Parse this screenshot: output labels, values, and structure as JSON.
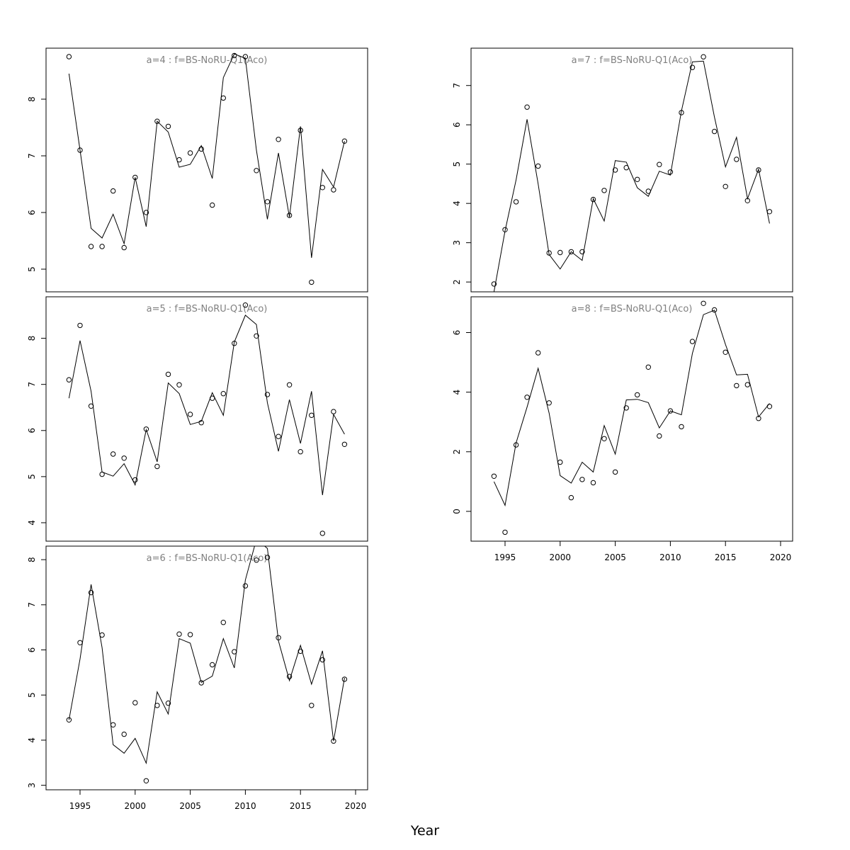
{
  "figure": {
    "xlabel": "Year",
    "x_tick_labels": [
      "1995",
      "2000",
      "2005",
      "2010",
      "2015",
      "2020"
    ]
  },
  "chart_data": [
    {
      "type": "scatter",
      "title": "a=4  :  f=BS-NoRU-Q1(Aco)",
      "xlabel": "Year",
      "xlim": [
        1992,
        2021
      ],
      "ylim": [
        4.6,
        8.9
      ],
      "y_ticks": [
        5,
        6,
        7,
        8
      ],
      "x": [
        1994,
        1995,
        1996,
        1997,
        1998,
        1999,
        2000,
        2001,
        2002,
        2003,
        2004,
        2005,
        2006,
        2007,
        2008,
        2009,
        2010,
        2011,
        2012,
        2013,
        2014,
        2015,
        2016,
        2017,
        2018,
        2019
      ],
      "series": [
        {
          "kind": "points",
          "values": [
            8.75,
            7.1,
            5.4,
            5.4,
            6.38,
            5.38,
            6.62,
            6.0,
            7.61,
            7.52,
            6.93,
            7.05,
            7.12,
            6.13,
            8.02,
            8.77,
            8.75,
            6.74,
            6.19,
            7.29,
            5.95,
            7.45,
            4.77,
            6.44,
            6.4,
            7.26
          ]
        },
        {
          "kind": "line",
          "values": [
            8.45,
            7.1,
            5.72,
            5.55,
            5.97,
            5.45,
            6.62,
            5.75,
            7.61,
            7.42,
            6.8,
            6.85,
            7.18,
            6.6,
            8.38,
            8.8,
            8.72,
            7.1,
            5.88,
            7.05,
            5.92,
            7.52,
            5.2,
            6.76,
            6.45,
            7.26
          ]
        }
      ]
    },
    {
      "type": "scatter",
      "title": "a=5  :  f=BS-NoRU-Q1(Aco)",
      "xlabel": "Year",
      "xlim": [
        1992,
        2021
      ],
      "ylim": [
        3.6,
        8.9
      ],
      "y_ticks": [
        4,
        5,
        6,
        7,
        8
      ],
      "x": [
        1994,
        1995,
        1996,
        1997,
        1998,
        1999,
        2000,
        2001,
        2002,
        2003,
        2004,
        2005,
        2006,
        2007,
        2008,
        2009,
        2010,
        2011,
        2012,
        2013,
        2014,
        2015,
        2016,
        2017,
        2018,
        2019
      ],
      "series": [
        {
          "kind": "points",
          "values": [
            7.1,
            8.28,
            6.53,
            5.05,
            5.49,
            5.4,
            4.93,
            6.03,
            5.22,
            7.22,
            6.99,
            6.35,
            6.17,
            6.7,
            6.8,
            7.89,
            8.72,
            8.05,
            6.78,
            5.87,
            6.99,
            5.54,
            6.33,
            3.77,
            6.41,
            5.7
          ]
        },
        {
          "kind": "line",
          "values": [
            6.7,
            7.95,
            6.85,
            5.1,
            5.01,
            5.28,
            4.82,
            6.02,
            5.32,
            7.03,
            6.8,
            6.13,
            6.2,
            6.82,
            6.33,
            7.92,
            8.5,
            8.3,
            6.6,
            5.55,
            6.67,
            5.72,
            6.85,
            4.6,
            6.35,
            5.92
          ]
        }
      ]
    },
    {
      "type": "scatter",
      "title": "a=6  :  f=BS-NoRU-Q1(Aco)",
      "xlabel": "Year",
      "xlim": [
        1992,
        2021
      ],
      "ylim": [
        2.9,
        8.3
      ],
      "y_ticks": [
        3,
        4,
        5,
        6,
        7,
        8
      ],
      "x": [
        1994,
        1995,
        1996,
        1997,
        1998,
        1999,
        2000,
        2001,
        2002,
        2003,
        2004,
        2005,
        2006,
        2007,
        2008,
        2009,
        2010,
        2011,
        2012,
        2013,
        2014,
        2015,
        2016,
        2017,
        2018,
        2019
      ],
      "series": [
        {
          "kind": "points",
          "values": [
            4.45,
            6.16,
            7.27,
            6.33,
            4.34,
            4.13,
            4.83,
            3.1,
            4.77,
            4.82,
            6.35,
            6.34,
            5.27,
            5.67,
            6.61,
            5.96,
            7.42,
            7.99,
            8.05,
            6.27,
            5.41,
            5.97,
            4.77,
            5.78,
            3.98,
            5.35
          ]
        },
        {
          "kind": "line",
          "values": [
            4.45,
            5.8,
            7.45,
            6.05,
            3.9,
            3.71,
            4.04,
            3.49,
            5.07,
            4.58,
            6.25,
            6.15,
            5.28,
            5.42,
            6.25,
            5.6,
            7.55,
            8.45,
            8.25,
            6.2,
            5.32,
            6.1,
            5.24,
            5.98,
            3.98,
            5.38
          ]
        }
      ]
    },
    {
      "type": "scatter",
      "title": "a=7  :  f=BS-NoRU-Q1(Aco)",
      "xlabel": "Year",
      "xlim": [
        1992,
        2021
      ],
      "ylim": [
        1.75,
        7.95
      ],
      "y_ticks": [
        2,
        3,
        4,
        5,
        6,
        7
      ],
      "x": [
        1994,
        1995,
        1996,
        1997,
        1998,
        1999,
        2000,
        2001,
        2002,
        2003,
        2004,
        2005,
        2006,
        2007,
        2008,
        2009,
        2010,
        2011,
        2012,
        2013,
        2014,
        2015,
        2016,
        2017,
        2018,
        2019
      ],
      "series": [
        {
          "kind": "points",
          "values": [
            1.95,
            3.33,
            4.04,
            6.45,
            4.95,
            2.74,
            2.75,
            2.77,
            2.77,
            4.1,
            4.33,
            4.85,
            4.91,
            4.61,
            4.31,
            4.99,
            4.8,
            6.31,
            7.46,
            7.73,
            5.83,
            4.43,
            5.12,
            4.07,
            4.85,
            3.79
          ]
        },
        {
          "kind": "line",
          "values": [
            1.75,
            3.3,
            4.6,
            6.14,
            4.5,
            2.7,
            2.33,
            2.77,
            2.55,
            4.12,
            3.55,
            5.09,
            5.05,
            4.4,
            4.18,
            4.82,
            4.72,
            6.35,
            7.6,
            7.62,
            6.2,
            4.93,
            5.68,
            4.12,
            4.87,
            3.49
          ]
        }
      ]
    },
    {
      "type": "scatter",
      "title": "a=8  :  f=BS-NoRU-Q1(Aco)",
      "xlabel": "Year",
      "xlim": [
        1992,
        2021
      ],
      "ylim": [
        -1.0,
        7.2
      ],
      "y_ticks": [
        0,
        2,
        4,
        6
      ],
      "x": [
        1994,
        1995,
        1996,
        1997,
        1998,
        1999,
        2000,
        2001,
        2002,
        2003,
        2004,
        2005,
        2006,
        2007,
        2008,
        2009,
        2010,
        2011,
        2012,
        2013,
        2014,
        2015,
        2016,
        2017,
        2018,
        2019
      ],
      "series": [
        {
          "kind": "points",
          "values": [
            1.18,
            -0.7,
            2.23,
            3.83,
            5.32,
            3.64,
            1.65,
            0.46,
            1.07,
            0.96,
            2.44,
            1.32,
            3.47,
            3.91,
            4.84,
            2.53,
            3.37,
            2.84,
            5.7,
            6.98,
            6.76,
            5.34,
            4.22,
            4.25,
            3.12,
            3.52
          ]
        },
        {
          "kind": "line",
          "values": [
            1.0,
            0.2,
            2.3,
            3.5,
            4.8,
            3.3,
            1.2,
            0.95,
            1.65,
            1.32,
            2.88,
            1.92,
            3.74,
            3.76,
            3.65,
            2.8,
            3.37,
            3.24,
            5.3,
            6.6,
            6.75,
            5.6,
            4.58,
            4.6,
            3.17,
            3.62
          ]
        }
      ]
    }
  ]
}
